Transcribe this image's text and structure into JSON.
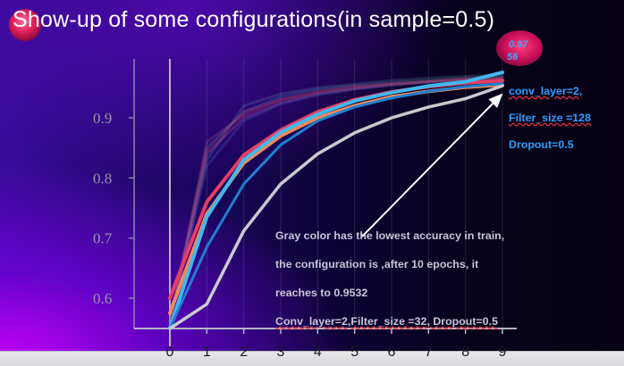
{
  "slide": {
    "title": "Show-up of some configurations(in sample=0.5)"
  },
  "annotations": {
    "gray_note_lines": [
      "Gray color has the lowest accuracy in train,",
      "the configuration is  ,after 10 epochs, it",
      "reaches to 0.9532",
      "Conv_layer=2,Filter_size =32, Dropout=0.5"
    ],
    "blue_note_lines": [
      "conv_layer=2,",
      "Filter_size =128",
      "Dropout=0.5"
    ],
    "peak_value_top": "0.97",
    "peak_value_bottom": "56"
  },
  "colors": {
    "blue_note": "#2aa0ff",
    "gray_note": "#c8c4d8",
    "arrow": "#ffffff"
  },
  "chart_data": {
    "type": "line",
    "x": [
      0,
      1,
      2,
      3,
      4,
      5,
      6,
      7,
      8,
      9
    ],
    "xticks": [
      "0",
      "1",
      "2",
      "3",
      "4",
      "5",
      "6",
      "7",
      "8",
      "9"
    ],
    "yticks": [
      "0.6",
      "0.7",
      "0.8",
      "0.9"
    ],
    "ylim": [
      0.54,
      0.99
    ],
    "xlim": [
      0,
      9
    ],
    "grid": true,
    "series": [
      {
        "color": "#4a90d9",
        "opacity": 0.25,
        "width": 3,
        "values": [
          0.56,
          0.85,
          0.91,
          0.935,
          0.947,
          0.953,
          0.958,
          0.962,
          0.966,
          0.968
        ]
      },
      {
        "color": "#d94a8a",
        "opacity": 0.25,
        "width": 3,
        "values": [
          0.56,
          0.86,
          0.905,
          0.93,
          0.942,
          0.95,
          0.956,
          0.96,
          0.964,
          0.966
        ]
      },
      {
        "color": "#5f8fb0",
        "opacity": 0.25,
        "width": 3,
        "values": [
          0.56,
          0.83,
          0.92,
          0.94,
          0.95,
          0.956,
          0.962,
          0.966,
          0.969,
          0.971
        ]
      },
      {
        "color": "#e0609a",
        "opacity": 0.25,
        "width": 3,
        "values": [
          0.56,
          0.84,
          0.9,
          0.925,
          0.94,
          0.948,
          0.955,
          0.96,
          0.963,
          0.965
        ]
      },
      {
        "color": "#4a6fd9",
        "opacity": 0.25,
        "width": 3,
        "values": [
          0.56,
          0.82,
          0.895,
          0.923,
          0.938,
          0.948,
          0.954,
          0.959,
          0.962,
          0.964
        ]
      },
      {
        "color": "#c8364a",
        "opacity": 0.25,
        "width": 3,
        "values": [
          0.56,
          0.845,
          0.91,
          0.93,
          0.944,
          0.952,
          0.957,
          0.961,
          0.965,
          0.967
        ]
      },
      {
        "color": "#e63e64",
        "opacity": 1,
        "width": 4,
        "values": [
          0.6,
          0.76,
          0.838,
          0.88,
          0.91,
          0.93,
          0.943,
          0.952,
          0.958,
          0.962
        ]
      },
      {
        "color": "#f08a58",
        "opacity": 1,
        "width": 4,
        "values": [
          0.575,
          0.74,
          0.825,
          0.87,
          0.9,
          0.92,
          0.935,
          0.944,
          0.951,
          0.955
        ]
      },
      {
        "color": "#41b8f0",
        "opacity": 1,
        "width": 4,
        "values": [
          0.55,
          0.735,
          0.83,
          0.876,
          0.906,
          0.928,
          0.942,
          0.953,
          0.96,
          0.9756
        ]
      },
      {
        "color": "#1f7fd0",
        "opacity": 1,
        "width": 3,
        "values": [
          0.53,
          0.685,
          0.79,
          0.855,
          0.895,
          0.918,
          0.933,
          0.944,
          0.952,
          0.957
        ]
      },
      {
        "color": "#c9c9cf",
        "opacity": 1,
        "width": 3.5,
        "values": [
          0.48,
          0.59,
          0.712,
          0.79,
          0.84,
          0.875,
          0.9,
          0.918,
          0.932,
          0.9532
        ]
      }
    ]
  }
}
